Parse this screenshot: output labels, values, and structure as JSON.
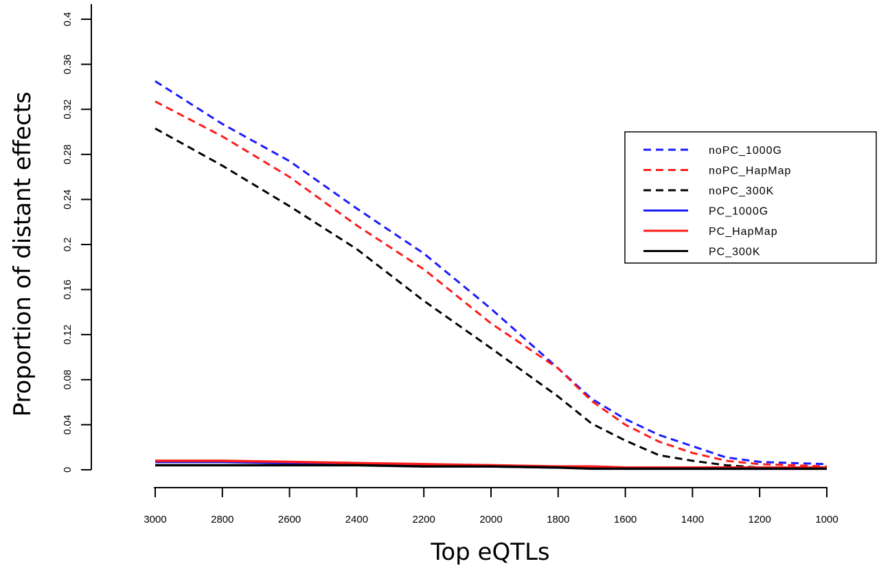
{
  "chart_data": {
    "type": "line",
    "xlabel": "Top eQTLs",
    "ylabel": "Proportion of distant effects",
    "xlim": [
      3000,
      1000
    ],
    "ylim": [
      0,
      0.4
    ],
    "x_ticks": [
      3000,
      2800,
      2600,
      2400,
      2200,
      2000,
      1800,
      1600,
      1400,
      1200,
      1000
    ],
    "x_tick_labels": [
      "3000",
      "2800",
      "2600",
      "2400",
      "2200",
      "2000",
      "1800",
      "1600",
      "1400",
      "1200",
      "1000"
    ],
    "y_ticks": [
      0,
      0.04,
      0.08,
      0.12,
      0.16,
      0.2,
      0.24,
      0.28,
      0.32,
      0.36,
      0.4
    ],
    "y_tick_labels": [
      "0",
      "0.04",
      "0.08",
      "0.12",
      "0.16",
      "0.2",
      "0.24",
      "0.28",
      "0.32",
      "0.36",
      "0.4"
    ],
    "legend_position": "right",
    "x": [
      3000,
      2800,
      2600,
      2400,
      2200,
      2000,
      1800,
      1700,
      1600,
      1500,
      1400,
      1300,
      1200,
      1100,
      1000
    ],
    "series": [
      {
        "name": "noPC_1000G",
        "color": "#1a1aff",
        "style": "dashed",
        "values": [
          0.345,
          0.307,
          0.274,
          0.232,
          0.192,
          0.143,
          0.09,
          0.063,
          0.045,
          0.031,
          0.021,
          0.011,
          0.007,
          0.006,
          0.005
        ]
      },
      {
        "name": "noPC_HapMap",
        "color": "#ff1a1a",
        "style": "dashed",
        "values": [
          0.327,
          0.296,
          0.26,
          0.217,
          0.178,
          0.13,
          0.09,
          0.061,
          0.04,
          0.025,
          0.015,
          0.008,
          0.005,
          0.004,
          0.003
        ]
      },
      {
        "name": "noPC_300K",
        "color": "#000000",
        "style": "dashed",
        "values": [
          0.303,
          0.27,
          0.234,
          0.196,
          0.15,
          0.108,
          0.065,
          0.041,
          0.026,
          0.013,
          0.008,
          0.004,
          0.002,
          0.002,
          0.002
        ]
      },
      {
        "name": "PC_1000G",
        "color": "#1a1aff",
        "style": "solid",
        "values": [
          0.007,
          0.007,
          0.006,
          0.005,
          0.004,
          0.003,
          0.002,
          0.002,
          0.001,
          0.001,
          0.001,
          0.001,
          0.001,
          0.001,
          0.001
        ]
      },
      {
        "name": "PC_HapMap",
        "color": "#ff1a1a",
        "style": "solid",
        "values": [
          0.008,
          0.008,
          0.007,
          0.006,
          0.005,
          0.004,
          0.003,
          0.003,
          0.002,
          0.002,
          0.002,
          0.002,
          0.002,
          0.002,
          0.002
        ]
      },
      {
        "name": "PC_300K",
        "color": "#000000",
        "style": "solid",
        "values": [
          0.004,
          0.004,
          0.004,
          0.004,
          0.003,
          0.003,
          0.002,
          0.001,
          0.001,
          0.001,
          0.001,
          0.001,
          0.001,
          0.001,
          0.001
        ]
      }
    ]
  }
}
